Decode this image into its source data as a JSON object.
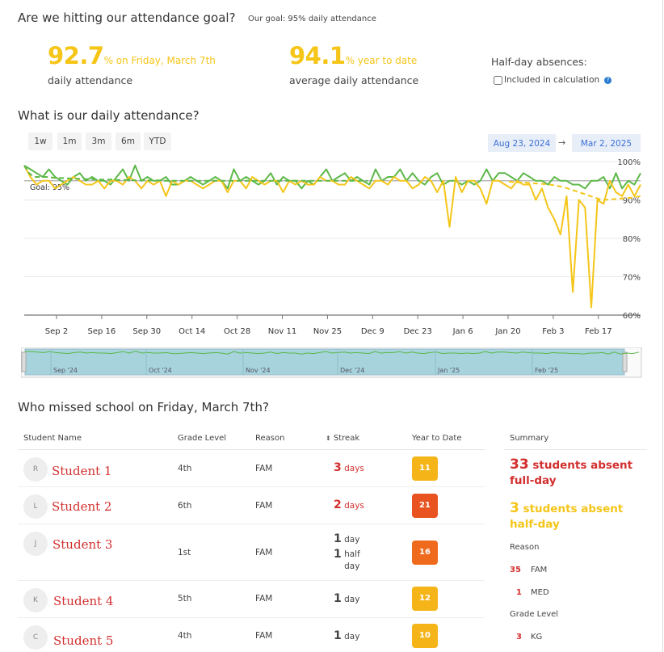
{
  "header": {
    "title": "Are we hitting our attendance goal?",
    "goal_note": "Our goal: 95% daily attendance"
  },
  "stats": {
    "daily": {
      "value": "92.7",
      "suffix": "% on Friday, March 7th",
      "label": "daily attendance"
    },
    "ytd": {
      "value": "94.1",
      "suffix": "% year to date",
      "label": "average daily attendance"
    },
    "half_day": {
      "title": "Half-day absences:",
      "checkbox_label": "Included in calculation",
      "checked": false
    }
  },
  "chart_section": {
    "title": "What is our daily attendance?",
    "range_buttons": [
      "1w",
      "1m",
      "3m",
      "6m",
      "YTD"
    ],
    "date_from": "Aug 23, 2024",
    "arrow": "→",
    "date_to": "Mar 2, 2025"
  },
  "chart_data": {
    "type": "line",
    "goal_label": "Goal: 95%",
    "goal": 95,
    "ylim": [
      60,
      100
    ],
    "yticks": [
      "100%",
      "90%",
      "80%",
      "70%",
      "60%"
    ],
    "xticks": [
      "Sep 2",
      "Sep 16",
      "Sep 30",
      "Oct 14",
      "Oct 28",
      "Nov 11",
      "Nov 25",
      "Dec 9",
      "Dec 23",
      "Jan 6",
      "Jan 20",
      "Feb 3",
      "Feb 17"
    ],
    "navigator_labels": [
      "Sep '24",
      "Oct '24",
      "Nov '24",
      "Dec '24",
      "Jan '25",
      "Feb '25"
    ],
    "series": [
      {
        "color": "#5cb848",
        "style": "solid",
        "values": [
          99,
          98,
          97,
          96,
          98,
          96,
          95,
          94,
          96,
          97,
          95,
          96,
          95,
          95,
          94,
          96,
          98,
          95,
          99,
          95,
          96,
          95,
          95,
          96,
          94,
          94,
          95,
          96,
          95,
          94,
          95,
          96,
          95,
          93,
          98,
          95,
          96,
          95,
          94,
          95,
          97,
          94,
          96,
          95,
          95,
          93,
          95,
          94,
          96,
          98,
          95,
          96,
          97,
          95,
          96,
          95,
          94,
          98,
          95,
          96,
          96,
          98,
          95,
          97,
          95,
          94,
          96,
          97,
          94,
          95,
          95,
          94,
          95,
          94,
          95,
          98,
          95,
          97,
          97,
          96,
          95,
          97,
          96,
          95,
          95,
          94,
          96,
          95,
          95,
          94,
          94,
          93,
          95,
          95,
          96,
          93,
          97,
          93,
          95,
          94,
          97
        ]
      },
      {
        "color": "#f5c518",
        "style": "solid",
        "values": [
          99,
          96,
          94,
          95,
          95,
          93,
          94,
          95,
          96,
          95,
          94,
          94,
          95,
          93,
          95,
          95,
          94,
          96,
          95,
          93,
          95,
          94,
          95,
          91,
          95,
          94,
          95,
          95,
          94,
          93,
          94,
          95,
          95,
          92,
          95,
          95,
          93,
          96,
          95,
          94,
          95,
          95,
          92,
          95,
          94,
          95,
          94,
          94,
          96,
          95,
          95,
          94,
          94,
          96,
          95,
          94,
          93,
          95,
          95,
          94,
          96,
          95,
          95,
          93,
          94,
          96,
          95,
          92,
          95,
          83,
          96,
          92,
          95,
          95,
          93,
          89,
          95,
          95,
          94,
          93,
          95,
          94,
          94,
          90,
          93,
          88,
          85,
          81,
          91,
          66,
          90,
          88,
          62,
          90,
          89,
          95,
          92,
          91,
          94,
          91,
          94
        ]
      },
      {
        "color": "#5cb848",
        "style": "dashed",
        "values": [
          99,
          97,
          96,
          96,
          96,
          96,
          95.8,
          95.7,
          95.7,
          95.6,
          95.6,
          95.5,
          95.5,
          95.4,
          95.4,
          95.3,
          95.3,
          95.3,
          95.3,
          95.2,
          95.2,
          95.2,
          95.2,
          95.1,
          95.1,
          95.1,
          95.1,
          95.1,
          95.1,
          95,
          95,
          95,
          95,
          95,
          95,
          95,
          95,
          95,
          95,
          95,
          95,
          95,
          95,
          95,
          95,
          95,
          95,
          95,
          95,
          95,
          95,
          95,
          95,
          95,
          95,
          95,
          95,
          95,
          95,
          95,
          95,
          95,
          95,
          95,
          95,
          95,
          95,
          95,
          95,
          95,
          95,
          95
        ]
      },
      {
        "color": "#f5c518",
        "style": "dashed",
        "values": [
          94.8,
          94.7,
          94.6,
          94.6,
          94.5,
          94.4,
          94.3,
          94.2,
          94.1,
          94.0,
          93.8,
          93.6,
          93.3,
          93.0,
          92.6,
          92.2,
          91.8,
          91.4,
          91.0,
          90.6,
          90.2,
          90.0,
          90.1,
          90.2,
          90.3,
          90.4,
          90.5,
          90.6,
          90.8,
          91.0
        ]
      }
    ]
  },
  "absences": {
    "title": "Who missed school on Friday, March 7th?",
    "columns": [
      "Student Name",
      "Grade Level",
      "Reason",
      "Streak",
      "Year to Date"
    ],
    "streak_sort_icon": "⬍",
    "rows": [
      {
        "initial": "R",
        "name": "Student 1",
        "grade": "4th",
        "reason": "FAM",
        "streak_num": "3",
        "streak_unit": "days",
        "streak_color": "#d32f2f",
        "ytd": "11",
        "badge_color": "#f5b418"
      },
      {
        "initial": "L",
        "name": "Student 2",
        "grade": "6th",
        "reason": "FAM",
        "streak_num": "2",
        "streak_unit": "days",
        "streak_color": "#d32f2f",
        "ytd": "21",
        "badge_color": "#e8531f"
      },
      {
        "initial": "J",
        "name": "Student 3",
        "grade": "1st",
        "reason": "FAM",
        "streak_num": "1",
        "streak_unit": "day",
        "streak_num2": "1",
        "streak_unit2": "half day",
        "streak_color": "#333",
        "ytd": "16",
        "badge_color": "#ef6a1c"
      },
      {
        "initial": "K",
        "name": "Student 4",
        "grade": "5th",
        "reason": "FAM",
        "streak_num": "1",
        "streak_unit": "day",
        "streak_color": "#333",
        "ytd": "12",
        "badge_color": "#f5b418"
      },
      {
        "initial": "C",
        "name": "Student 5",
        "grade": "4th",
        "reason": "FAM",
        "streak_num": "1",
        "streak_unit": "day",
        "streak_color": "#333",
        "ytd": "10",
        "badge_color": "#f5b418"
      }
    ]
  },
  "summary": {
    "title": "Summary",
    "full_day_count": "33",
    "full_day_text": "students absent full-day",
    "half_day_count": "3",
    "half_day_text": "students absent half-day",
    "reason_title": "Reason",
    "reasons": [
      {
        "count": "35",
        "label": "FAM"
      },
      {
        "count": "1",
        "label": "MED"
      }
    ],
    "grade_title": "Grade Level",
    "grades": [
      {
        "count": "3",
        "label": "KG"
      }
    ],
    "colors": {
      "full": "#d32f2f",
      "half": "#f5c518"
    }
  }
}
